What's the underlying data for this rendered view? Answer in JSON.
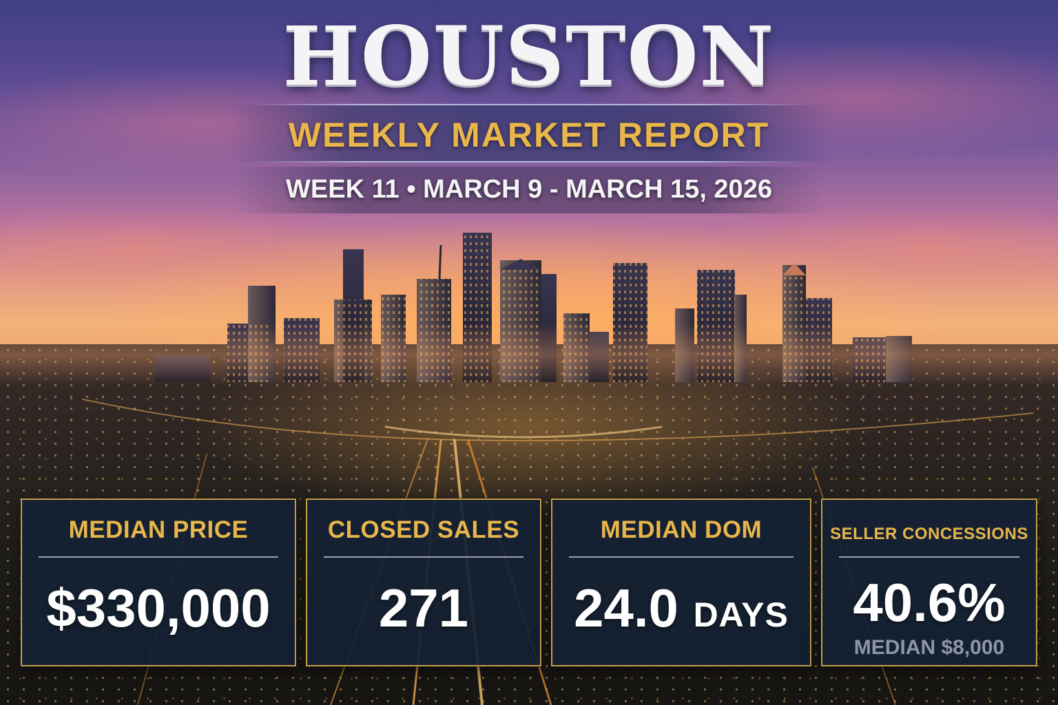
{
  "header": {
    "title": "HOUSTON",
    "subtitle": "WEEKLY MARKET REPORT",
    "week": "WEEK 11 • MARCH 9 - MARCH 15, 2026"
  },
  "stats": {
    "median_price": {
      "label": "MEDIAN PRICE",
      "value": "$330,000"
    },
    "closed_sales": {
      "label": "CLOSED SALES",
      "value": "271"
    },
    "median_dom": {
      "label": "MEDIAN DOM",
      "value": "24.0",
      "unit": "DAYS"
    },
    "seller_concessions": {
      "label": "SELLER CONCESSIONS",
      "value": "40.6%",
      "note": "MEDIAN $8,000"
    }
  },
  "colors": {
    "accent_gold": "#e8b64a",
    "card_bg": "#14213a",
    "card_border": "#c9a24a"
  }
}
